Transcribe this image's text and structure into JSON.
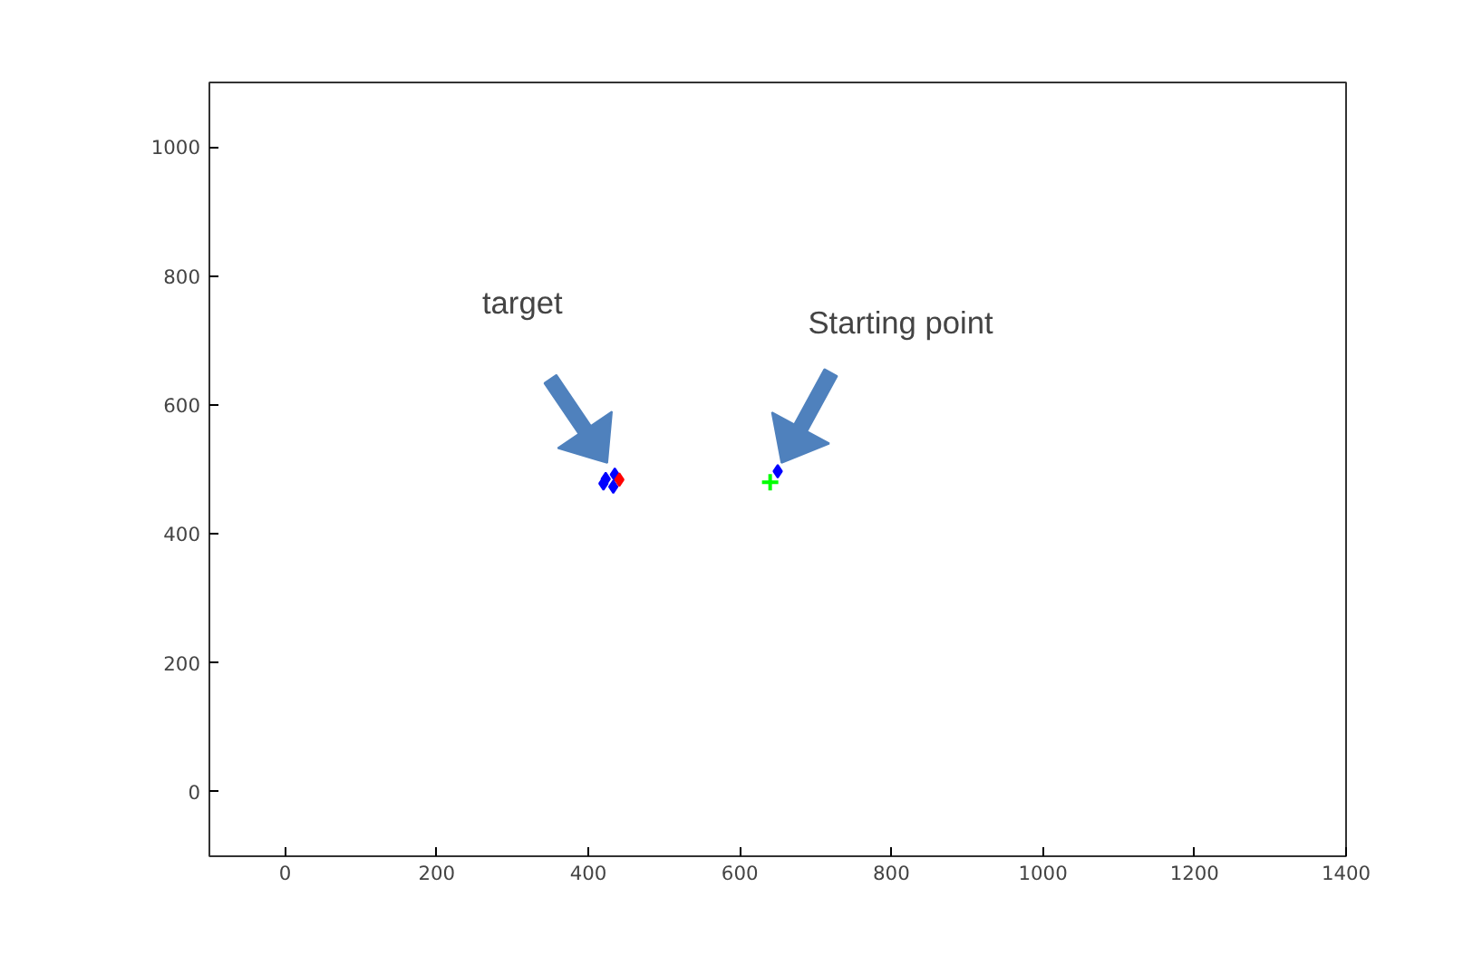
{
  "chart_data": {
    "type": "scatter",
    "xlim": [
      -100,
      1400
    ],
    "ylim": [
      -100,
      1100
    ],
    "xticks": [
      0,
      200,
      400,
      600,
      800,
      1000,
      1200,
      1400
    ],
    "yticks": [
      0,
      200,
      400,
      600,
      800,
      1000
    ],
    "grid": false,
    "series": [
      {
        "color": "#0000ff",
        "marker": "diamond",
        "x": [
          423,
          420,
          435,
          433,
          650
        ],
        "values": [
          485,
          478,
          492,
          473,
          497
        ]
      },
      {
        "color": "#ff0000",
        "marker": "diamond",
        "x": [
          441
        ],
        "values": [
          484
        ]
      },
      {
        "color": "#00ff00",
        "marker": "cross",
        "x": [
          640
        ],
        "values": [
          480
        ]
      }
    ],
    "annotations": [
      "target",
      "Starting point"
    ]
  }
}
